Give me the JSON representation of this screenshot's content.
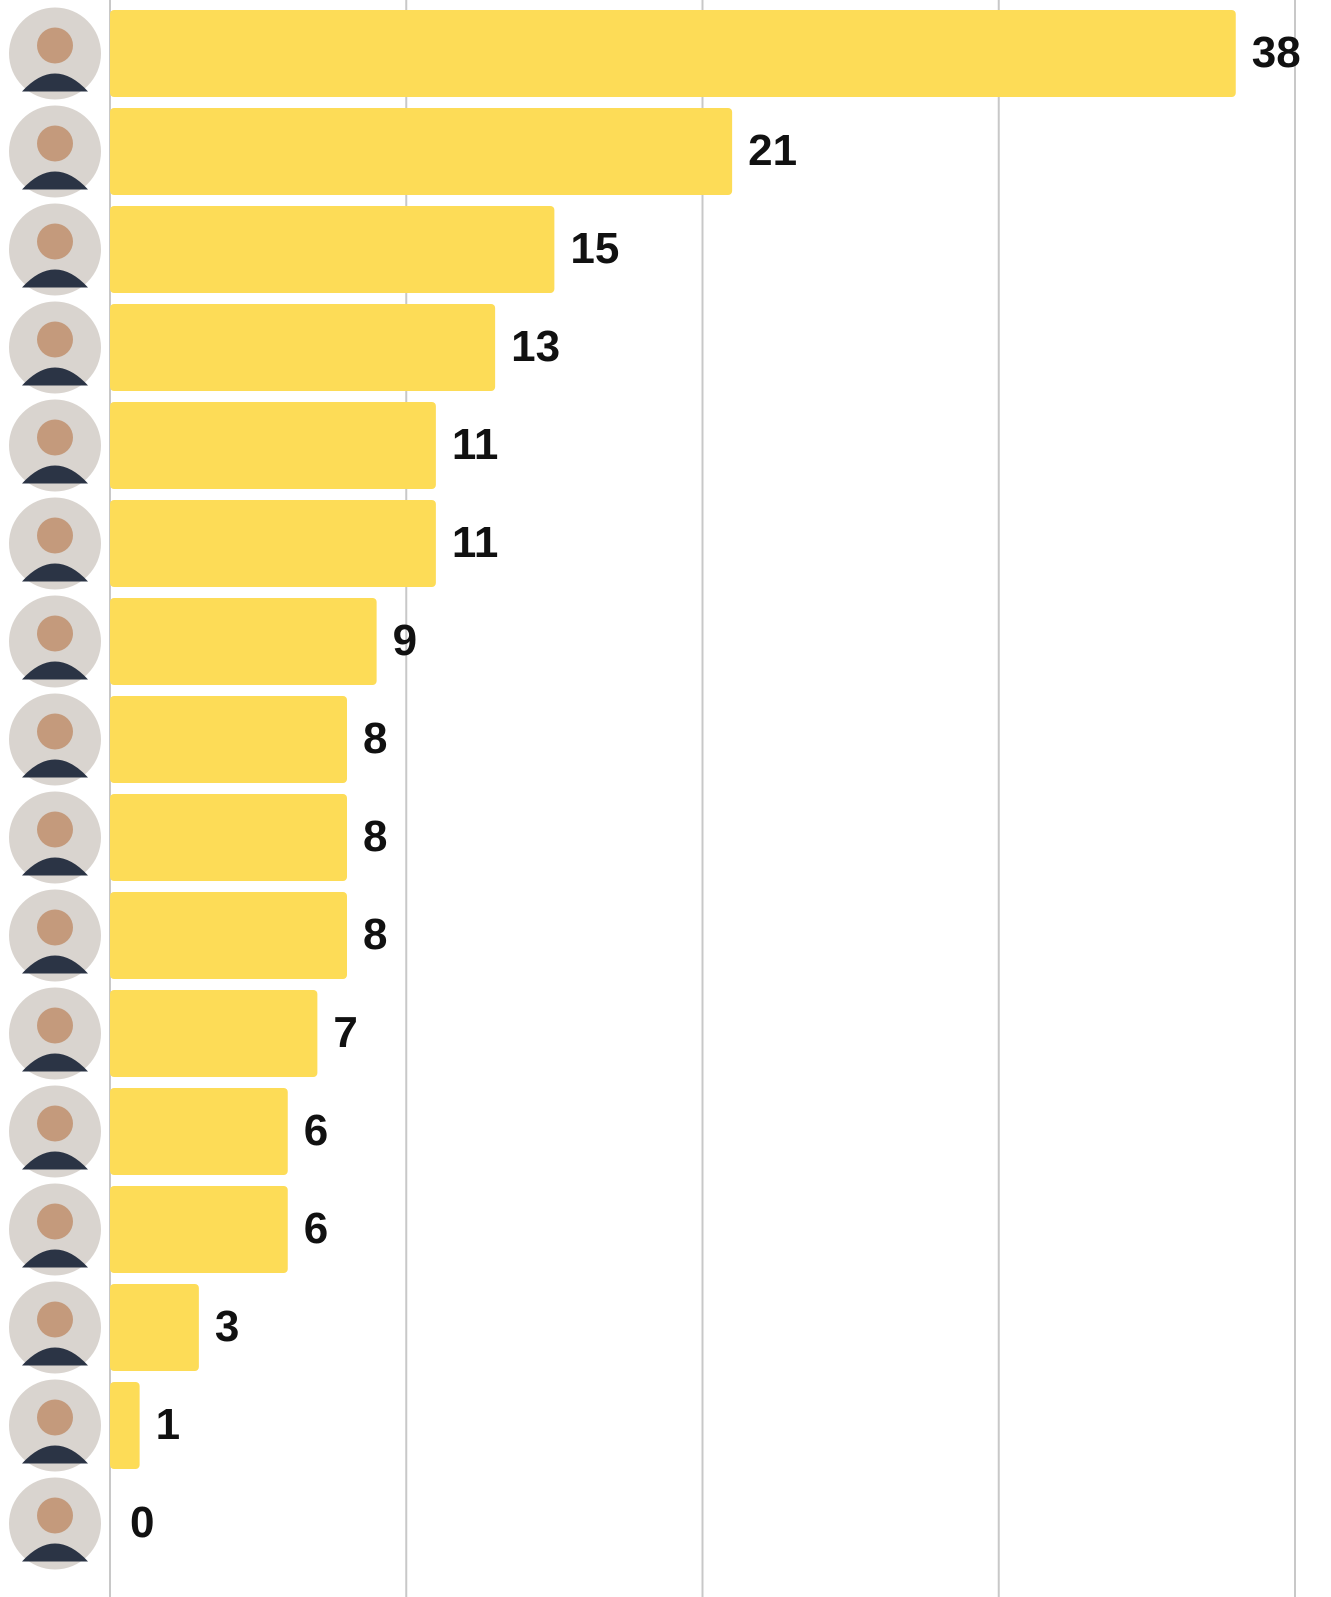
{
  "chart_data": {
    "type": "bar",
    "orientation": "horizontal",
    "values": [
      38,
      21,
      15,
      13,
      11,
      11,
      9,
      8,
      8,
      8,
      7,
      6,
      6,
      3,
      1,
      0
    ],
    "color": "#fddc57",
    "xlim": [
      0,
      40
    ],
    "xticks": [
      0,
      10,
      20,
      30,
      40
    ],
    "grid": true
  }
}
